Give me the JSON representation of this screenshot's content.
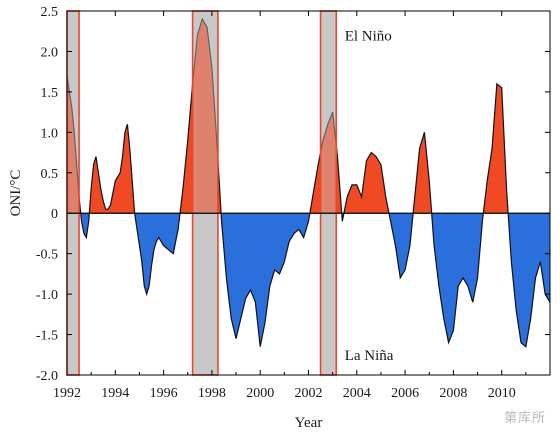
{
  "chart_data": {
    "type": "area",
    "title": "",
    "xlabel": "Year",
    "ylabel": "ONI/°C",
    "xlim": [
      1992,
      2012
    ],
    "ylim": [
      -2.0,
      2.5
    ],
    "xticks": [
      1992,
      1994,
      1996,
      1998,
      2000,
      2002,
      2004,
      2006,
      2008,
      2010
    ],
    "xtick_labels": [
      "1992",
      "1994",
      "1996",
      "1998",
      "2000",
      "2002",
      "2004",
      "2006",
      "2008",
      "2010"
    ],
    "yticks": [
      2.5,
      2.0,
      1.5,
      1.0,
      0.5,
      0,
      -0.5,
      -1.0,
      -1.5,
      -2.0
    ],
    "ytick_labels": [
      "2.5",
      "2.0",
      "1.5",
      "1.0",
      "0.5",
      "0",
      "-0.5",
      "-1.0",
      "-1.5",
      "-2.0"
    ],
    "annotations": [
      {
        "text": "El Niño",
        "x": 2003.5,
        "y": 2.2
      },
      {
        "text": "La Niña",
        "x": 2003.5,
        "y": -1.75
      }
    ],
    "positive_color": "#f04a24",
    "negative_color": "#2a6fdb",
    "highlight_fill": "#c8c8c8",
    "highlight_border": "#e8472a",
    "highlight_periods": [
      {
        "start": 1992.0,
        "end": 1992.5
      },
      {
        "start": 1997.2,
        "end": 1998.25
      },
      {
        "start": 2002.5,
        "end": 2003.15
      }
    ],
    "series": [
      {
        "x": [
          1992.0,
          1992.1,
          1992.2,
          1992.3,
          1992.4,
          1992.5,
          1992.6,
          1992.7,
          1992.8,
          1992.9,
          1993.0,
          1993.1,
          1993.2,
          1993.3,
          1993.4,
          1993.5,
          1993.6,
          1993.7,
          1993.8,
          1993.9,
          1994.0,
          1994.1,
          1994.2,
          1994.3,
          1994.4,
          1994.5,
          1994.6,
          1994.7,
          1994.8,
          1994.9,
          1995.0,
          1995.1,
          1995.2,
          1995.3,
          1995.4,
          1995.5,
          1995.6,
          1995.7,
          1995.8,
          1995.9,
          1996.0,
          1996.2,
          1996.4,
          1996.6,
          1996.8,
          1997.0,
          1997.2,
          1997.4,
          1997.6,
          1997.8,
          1998.0,
          1998.2,
          1998.4,
          1998.6,
          1998.8,
          1999.0,
          1999.2,
          1999.4,
          1999.6,
          1999.8,
          2000.0,
          2000.2,
          2000.4,
          2000.6,
          2000.8,
          2001.0,
          2001.2,
          2001.4,
          2001.6,
          2001.8,
          2002.0,
          2002.2,
          2002.4,
          2002.6,
          2002.8,
          2003.0,
          2003.2,
          2003.4,
          2003.6,
          2003.8,
          2004.0,
          2004.2,
          2004.4,
          2004.6,
          2004.8,
          2005.0,
          2005.2,
          2005.4,
          2005.6,
          2005.8,
          2006.0,
          2006.2,
          2006.4,
          2006.6,
          2006.8,
          2007.0,
          2007.2,
          2007.4,
          2007.6,
          2007.8,
          2008.0,
          2008.2,
          2008.4,
          2008.6,
          2008.8,
          2009.0,
          2009.2,
          2009.4,
          2009.6,
          2009.8,
          2010.0,
          2010.2,
          2010.4,
          2010.6,
          2010.8,
          2011.0,
          2011.2,
          2011.4,
          2011.6,
          2011.8,
          2012.0
        ],
        "y": [
          1.7,
          1.5,
          1.3,
          1.0,
          0.6,
          0.2,
          -0.1,
          -0.25,
          -0.3,
          -0.1,
          0.3,
          0.6,
          0.7,
          0.5,
          0.3,
          0.15,
          0.05,
          0.05,
          0.1,
          0.25,
          0.4,
          0.45,
          0.5,
          0.7,
          1.0,
          1.1,
          0.8,
          0.4,
          0.0,
          -0.2,
          -0.4,
          -0.6,
          -0.9,
          -1.0,
          -0.9,
          -0.65,
          -0.45,
          -0.35,
          -0.3,
          -0.35,
          -0.4,
          -0.45,
          -0.5,
          -0.2,
          0.3,
          0.9,
          1.6,
          2.2,
          2.4,
          2.3,
          1.8,
          0.9,
          -0.1,
          -0.8,
          -1.3,
          -1.55,
          -1.3,
          -1.05,
          -0.95,
          -1.1,
          -1.65,
          -1.35,
          -0.9,
          -0.7,
          -0.75,
          -0.6,
          -0.35,
          -0.25,
          -0.2,
          -0.3,
          -0.1,
          0.25,
          0.6,
          0.9,
          1.1,
          1.25,
          0.7,
          -0.1,
          0.2,
          0.35,
          0.35,
          0.2,
          0.65,
          0.75,
          0.7,
          0.6,
          0.2,
          -0.1,
          -0.4,
          -0.8,
          -0.7,
          -0.4,
          0.2,
          0.8,
          1.0,
          0.4,
          -0.4,
          -0.9,
          -1.3,
          -1.6,
          -1.45,
          -0.9,
          -0.8,
          -0.9,
          -1.1,
          -0.8,
          -0.1,
          0.4,
          0.8,
          1.6,
          1.55,
          0.3,
          -0.6,
          -1.2,
          -1.6,
          -1.65,
          -1.3,
          -0.8,
          -0.6,
          -1.0,
          -1.1
        ]
      }
    ]
  },
  "watermark_text": "第库所"
}
